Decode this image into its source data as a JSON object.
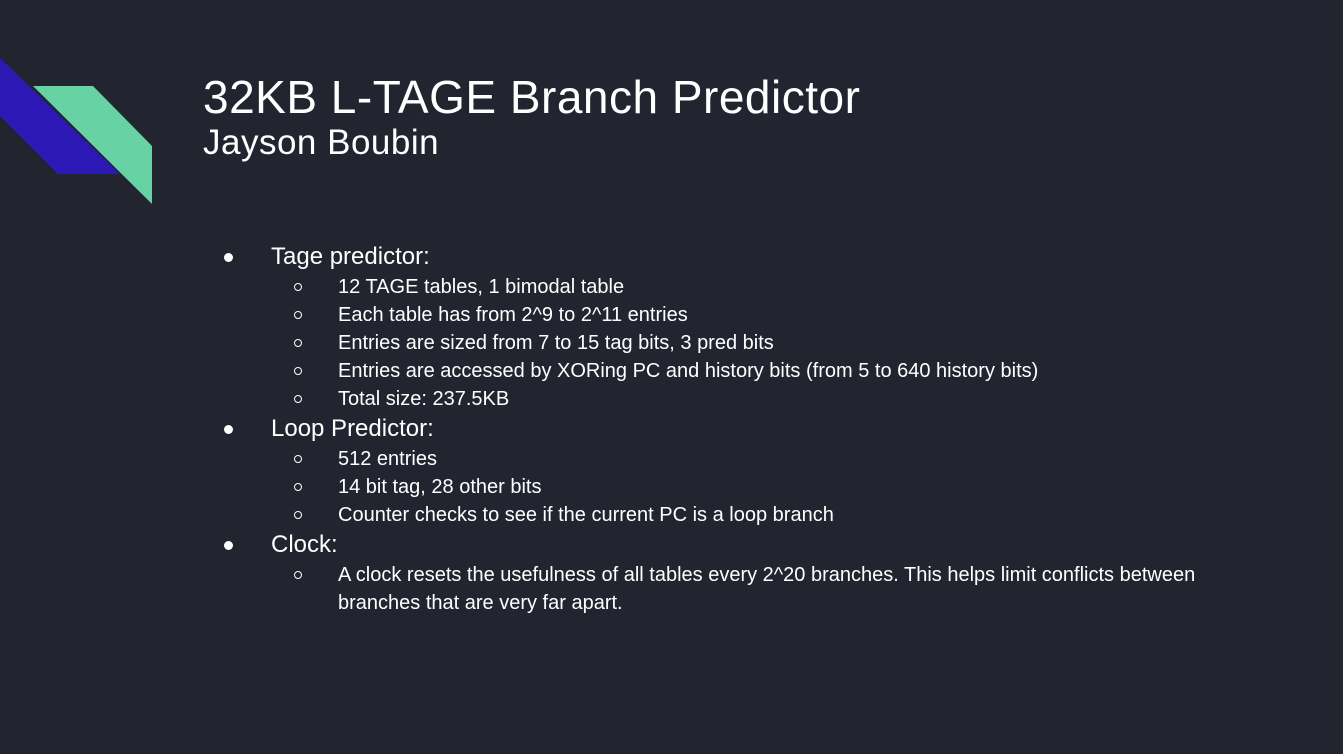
{
  "slide": {
    "title": "32KB L-TAGE Branch Predictor",
    "subtitle": "Jayson Boubin",
    "colors": {
      "background": "#222530",
      "accent_blue": "#2B18B5",
      "accent_green": "#67D2A4",
      "text": "#FFFFFF"
    }
  },
  "bullets": [
    {
      "label": "Tage predictor:",
      "items": [
        "12 TAGE tables, 1 bimodal table",
        "Each table has from 2^9 to 2^11 entries",
        "Entries are sized from 7 to 15 tag bits, 3 pred bits",
        "Entries are accessed by XORing  PC and history bits (from 5 to 640 history bits)",
        "Total size: 237.5KB"
      ]
    },
    {
      "label": "Loop Predictor:",
      "items": [
        "512 entries",
        "14 bit tag, 28 other bits",
        "Counter checks to see if the current PC is a loop branch"
      ]
    },
    {
      "label": "Clock:",
      "items": [
        "A clock resets the usefulness of all tables every 2^20 branches. This helps limit conflicts between branches that are very far apart."
      ]
    }
  ]
}
